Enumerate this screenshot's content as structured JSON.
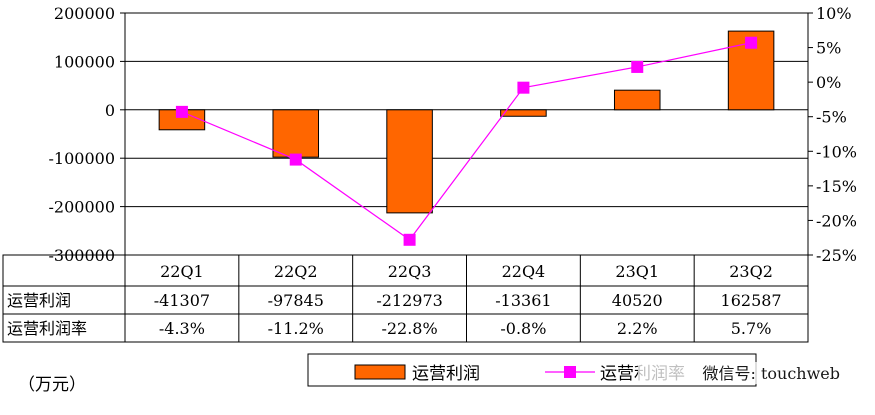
{
  "chart_data": {
    "type": "bar",
    "categories": [
      "22Q1",
      "22Q2",
      "22Q3",
      "22Q4",
      "23Q1",
      "23Q2"
    ],
    "series": [
      {
        "name": "运营利润",
        "type": "bar",
        "axis": "left",
        "color": "#ff6600",
        "values": [
          -41307,
          -97845,
          -212973,
          -13361,
          40520,
          162587
        ]
      },
      {
        "name": "运营利润率",
        "type": "line",
        "axis": "right",
        "color": "#ff00ff",
        "values": [
          -4.3,
          -11.2,
          -22.8,
          -0.8,
          2.2,
          5.7
        ]
      }
    ],
    "left_axis": {
      "ylim": [
        -300000,
        200000
      ],
      "ticks": [
        200000,
        100000,
        0,
        -100000,
        -200000,
        -300000
      ],
      "tick_labels": [
        "200000",
        "100000",
        "0",
        "-100000",
        "-200000",
        "-300000"
      ]
    },
    "right_axis": {
      "ylim": [
        -25,
        10
      ],
      "ticks": [
        10,
        5,
        0,
        -5,
        -10,
        -15,
        -20,
        -25
      ],
      "tick_labels": [
        "10%",
        "5%",
        "0%",
        "-5%",
        "-10%",
        "-15%",
        "-20%",
        "-25%"
      ]
    },
    "grid": true,
    "data_table": {
      "rows": [
        {
          "label": "运营利润",
          "cells": [
            "-41307",
            "-97845",
            "-212973",
            "-13361",
            "40520",
            "162587"
          ]
        },
        {
          "label": "运营利润率",
          "cells": [
            "-4.3%",
            "-11.2%",
            "-22.8%",
            "-0.8%",
            "2.2%",
            "5.7%"
          ]
        }
      ]
    },
    "legend": {
      "placement": "bottom",
      "items": [
        "运营利润",
        "运营利润率"
      ]
    }
  },
  "unit_label": "（万元）",
  "watermark": "微信号: touchweb"
}
